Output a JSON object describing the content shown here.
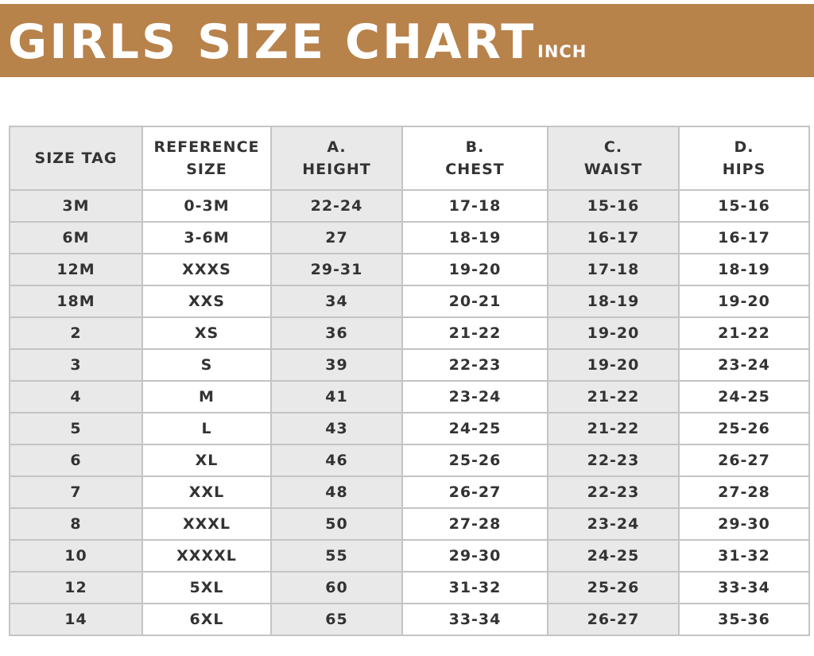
{
  "header": {
    "title": "GIRLS SIZE CHART",
    "unit": "INCH"
  },
  "table": {
    "columns": [
      [
        "SIZE TAG"
      ],
      [
        "REFERENCE",
        "SIZE"
      ],
      [
        "A.",
        "HEIGHT"
      ],
      [
        "B.",
        "CHEST"
      ],
      [
        "C.",
        "WAIST"
      ],
      [
        "D.",
        "HIPS"
      ]
    ],
    "rows": [
      [
        "3M",
        "0-3M",
        "22-24",
        "17-18",
        "15-16",
        "15-16"
      ],
      [
        "6M",
        "3-6M",
        "27",
        "18-19",
        "16-17",
        "16-17"
      ],
      [
        "12M",
        "XXXS",
        "29-31",
        "19-20",
        "17-18",
        "18-19"
      ],
      [
        "18M",
        "XXS",
        "34",
        "20-21",
        "18-19",
        "19-20"
      ],
      [
        "2",
        "XS",
        "36",
        "21-22",
        "19-20",
        "21-22"
      ],
      [
        "3",
        "S",
        "39",
        "22-23",
        "19-20",
        "23-24"
      ],
      [
        "4",
        "M",
        "41",
        "23-24",
        "21-22",
        "24-25"
      ],
      [
        "5",
        "L",
        "43",
        "24-25",
        "21-22",
        "25-26"
      ],
      [
        "6",
        "XL",
        "46",
        "25-26",
        "22-23",
        "26-27"
      ],
      [
        "7",
        "XXL",
        "48",
        "26-27",
        "22-23",
        "27-28"
      ],
      [
        "8",
        "XXXL",
        "50",
        "27-28",
        "23-24",
        "29-30"
      ],
      [
        "10",
        "XXXXL",
        "55",
        "29-30",
        "24-25",
        "31-32"
      ],
      [
        "12",
        "5XL",
        "60",
        "31-32",
        "25-26",
        "33-34"
      ],
      [
        "14",
        "6XL",
        "65",
        "33-34",
        "26-27",
        "35-36"
      ]
    ]
  }
}
